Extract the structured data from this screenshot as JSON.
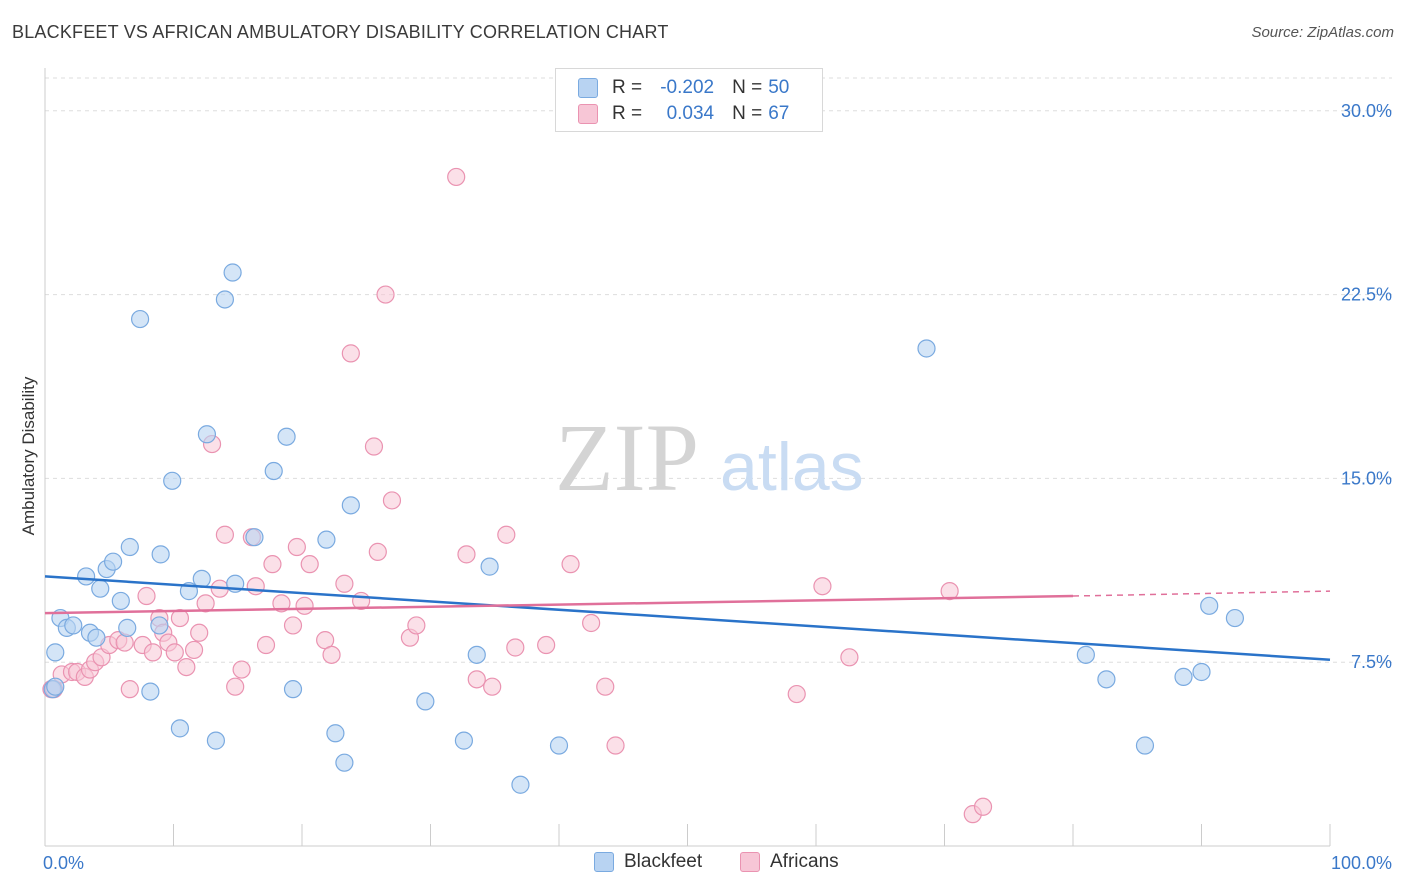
{
  "header": {
    "title": "BLACKFEET VS AFRICAN AMBULATORY DISABILITY CORRELATION CHART",
    "source": "Source: ZipAtlas.com"
  },
  "watermark": {
    "zip": "ZIP",
    "atlas": "atlas"
  },
  "legend_top": {
    "rows": [
      {
        "r_label": "R =",
        "r_value": "-0.202",
        "n_label": "N =",
        "n_value": "50"
      },
      {
        "r_label": "R =",
        "r_value": "0.034",
        "n_label": "N =",
        "n_value": "67"
      }
    ]
  },
  "legend_bottom": {
    "items": [
      "Blackfeet",
      "Africans"
    ]
  },
  "colors": {
    "blackfeet_fill": "#b8d3f2",
    "blackfeet_stroke": "#7aaae0",
    "blackfeet_line": "#2a73c9",
    "africans_fill": "#f7c6d6",
    "africans_stroke": "#ea93b1",
    "africans_line": "#e0709a",
    "axis_label": "#3a78c9",
    "grid": "#dddddd"
  },
  "chart_data": {
    "type": "scatter",
    "title": "BLACKFEET VS AFRICAN AMBULATORY DISABILITY CORRELATION CHART",
    "xlabel": "",
    "ylabel": "Ambulatory Disability",
    "xlim": [
      0,
      100
    ],
    "ylim": [
      0,
      31.5
    ],
    "x_tick_labels": [
      "0.0%",
      "100.0%"
    ],
    "y_ticks": [
      7.5,
      15.0,
      22.5,
      30.0
    ],
    "y_tick_labels": [
      "7.5%",
      "15.0%",
      "22.5%",
      "30.0%"
    ],
    "grid": true,
    "legend_placement": "top-center",
    "series": [
      {
        "name": "Blackfeet",
        "points": [
          [
            0.6,
            6.4
          ],
          [
            0.8,
            6.5
          ],
          [
            0.8,
            7.9
          ],
          [
            1.2,
            9.3
          ],
          [
            1.7,
            8.9
          ],
          [
            2.2,
            9.0
          ],
          [
            3.2,
            11.0
          ],
          [
            3.5,
            8.7
          ],
          [
            4.0,
            8.5
          ],
          [
            4.3,
            10.5
          ],
          [
            4.8,
            11.3
          ],
          [
            5.3,
            11.6
          ],
          [
            5.9,
            10.0
          ],
          [
            6.4,
            8.9
          ],
          [
            6.6,
            12.2
          ],
          [
            7.4,
            21.5
          ],
          [
            8.2,
            6.3
          ],
          [
            8.9,
            9.0
          ],
          [
            9.0,
            11.9
          ],
          [
            9.9,
            14.9
          ],
          [
            10.5,
            4.8
          ],
          [
            11.2,
            10.4
          ],
          [
            12.2,
            10.9
          ],
          [
            12.6,
            16.8
          ],
          [
            13.3,
            4.3
          ],
          [
            14.0,
            22.3
          ],
          [
            14.6,
            23.4
          ],
          [
            14.8,
            10.7
          ],
          [
            16.3,
            12.6
          ],
          [
            17.8,
            15.3
          ],
          [
            18.8,
            16.7
          ],
          [
            19.3,
            6.4
          ],
          [
            21.9,
            12.5
          ],
          [
            22.6,
            4.6
          ],
          [
            23.3,
            3.4
          ],
          [
            23.8,
            13.9
          ],
          [
            29.6,
            5.9
          ],
          [
            32.6,
            4.3
          ],
          [
            33.6,
            7.8
          ],
          [
            34.6,
            11.4
          ],
          [
            37.0,
            2.5
          ],
          [
            40.0,
            4.1
          ],
          [
            68.6,
            20.3
          ],
          [
            81.0,
            7.8
          ],
          [
            82.6,
            6.8
          ],
          [
            85.6,
            4.1
          ],
          [
            88.6,
            6.9
          ],
          [
            90.0,
            7.1
          ],
          [
            90.6,
            9.8
          ],
          [
            92.6,
            9.3
          ]
        ],
        "trend": {
          "x": [
            0,
            100
          ],
          "y": [
            11.0,
            7.6
          ]
        }
      },
      {
        "name": "Africans",
        "points": [
          [
            0.5,
            6.4
          ],
          [
            0.7,
            6.4
          ],
          [
            1.3,
            7.0
          ],
          [
            2.1,
            7.1
          ],
          [
            2.5,
            7.1
          ],
          [
            3.1,
            6.9
          ],
          [
            3.5,
            7.2
          ],
          [
            3.9,
            7.5
          ],
          [
            4.4,
            7.7
          ],
          [
            5.0,
            8.2
          ],
          [
            5.7,
            8.4
          ],
          [
            6.2,
            8.3
          ],
          [
            6.6,
            6.4
          ],
          [
            7.6,
            8.2
          ],
          [
            7.9,
            10.2
          ],
          [
            8.4,
            7.9
          ],
          [
            8.9,
            9.3
          ],
          [
            9.2,
            8.7
          ],
          [
            9.6,
            8.3
          ],
          [
            10.1,
            7.9
          ],
          [
            10.5,
            9.3
          ],
          [
            11.0,
            7.3
          ],
          [
            11.6,
            8.0
          ],
          [
            12.0,
            8.7
          ],
          [
            12.5,
            9.9
          ],
          [
            13.0,
            16.4
          ],
          [
            13.6,
            10.5
          ],
          [
            14.0,
            12.7
          ],
          [
            14.8,
            6.5
          ],
          [
            15.3,
            7.2
          ],
          [
            16.1,
            12.6
          ],
          [
            16.4,
            10.6
          ],
          [
            17.2,
            8.2
          ],
          [
            17.7,
            11.5
          ],
          [
            18.4,
            9.9
          ],
          [
            19.3,
            9.0
          ],
          [
            19.6,
            12.2
          ],
          [
            20.2,
            9.8
          ],
          [
            20.6,
            11.5
          ],
          [
            21.8,
            8.4
          ],
          [
            22.3,
            7.8
          ],
          [
            23.3,
            10.7
          ],
          [
            23.8,
            20.1
          ],
          [
            24.6,
            10.0
          ],
          [
            25.6,
            16.3
          ],
          [
            25.9,
            12.0
          ],
          [
            26.5,
            22.5
          ],
          [
            27.0,
            14.1
          ],
          [
            28.4,
            8.5
          ],
          [
            28.9,
            9.0
          ],
          [
            32.0,
            27.3
          ],
          [
            32.8,
            11.9
          ],
          [
            33.6,
            6.8
          ],
          [
            34.8,
            6.5
          ],
          [
            35.9,
            12.7
          ],
          [
            36.6,
            8.1
          ],
          [
            39.0,
            8.2
          ],
          [
            40.9,
            11.5
          ],
          [
            42.5,
            9.1
          ],
          [
            43.6,
            6.5
          ],
          [
            44.4,
            4.1
          ],
          [
            58.5,
            6.2
          ],
          [
            60.5,
            10.6
          ],
          [
            62.6,
            7.7
          ],
          [
            70.4,
            10.4
          ],
          [
            72.2,
            1.3
          ],
          [
            73.0,
            1.6
          ]
        ],
        "trend": {
          "x": [
            0,
            80
          ],
          "y": [
            9.5,
            10.2
          ],
          "dashed_to": [
            100,
            10.4
          ]
        }
      }
    ]
  }
}
